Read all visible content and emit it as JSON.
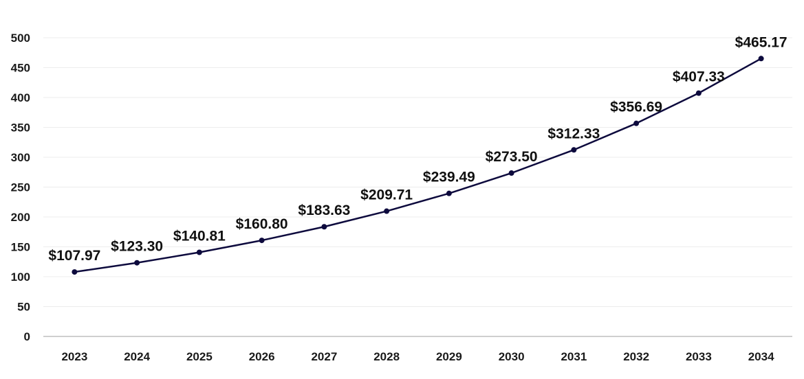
{
  "chart_data": {
    "type": "line",
    "title": "",
    "xlabel": "",
    "ylabel": "",
    "categories": [
      "2023",
      "2024",
      "2025",
      "2026",
      "2027",
      "2028",
      "2029",
      "2030",
      "2031",
      "2032",
      "2033",
      "2034"
    ],
    "series": [
      {
        "values": [
          107.97,
          123.3,
          140.81,
          160.8,
          183.63,
          209.71,
          239.49,
          273.5,
          312.33,
          356.69,
          407.33,
          465.17
        ],
        "labels": [
          "$107.97",
          "$123.30",
          "$140.81",
          "$160.80",
          "$183.63",
          "$209.71",
          "$239.49",
          "$273.50",
          "$312.33",
          "$356.69",
          "$407.33",
          "$465.17"
        ],
        "color": "#0d0a3d"
      }
    ],
    "ylim": [
      0,
      500
    ],
    "yticks": [
      "0",
      "50",
      "100",
      "150",
      "200",
      "250",
      "300",
      "350",
      "400",
      "450",
      "500"
    ],
    "grid": true,
    "legend": "none"
  }
}
